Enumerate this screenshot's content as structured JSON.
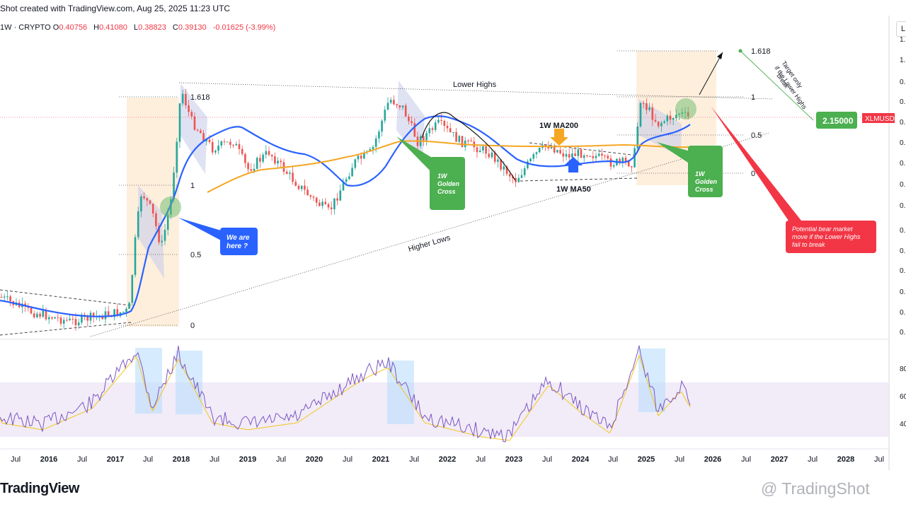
{
  "header": {
    "created_line": "Shot created with TradingView.com, Aug 25, 2025 11:23 UTC",
    "symbol_line": "1W · CRYPTO",
    "ohlc": {
      "O": "0.40756",
      "H": "0.41080",
      "L": "0.38823",
      "C": "0.39130",
      "change": "-0.01625 (-3.99%)"
    },
    "scale_button": "L"
  },
  "brand": "TradingView",
  "watermark": "@ TradingShot",
  "colors": {
    "ma200": "#f5a623",
    "ma50": "#2962ff",
    "candle_up": "#26a69a",
    "candle_down": "#ef5350",
    "rsi": "#7e57c2",
    "rsi_ma": "#f5c518",
    "green_box": "#4caf50",
    "blue_box": "#2962ff",
    "red_box": "#f23645"
  },
  "chart_data": {
    "type": "line",
    "title": "",
    "symbol_tag": "XLMUSD",
    "x_ticks": [
      "Jul",
      "2016",
      "Jul",
      "2017",
      "Jul",
      "2018",
      "Jul",
      "2019",
      "Jul",
      "2020",
      "Jul",
      "2021",
      "Jul",
      "2022",
      "Jul",
      "2023",
      "Jul",
      "2024",
      "Jul",
      "2025",
      "Jul",
      "2026",
      "Jul",
      "2027",
      "Jul",
      "2028",
      "Jul"
    ],
    "fib_levels": [
      {
        "label": "1.618",
        "group": "2017"
      },
      {
        "label": "1",
        "group": "2017"
      },
      {
        "label": "0.5",
        "group": "2017"
      },
      {
        "label": "0",
        "group": "2017"
      },
      {
        "label": "1.618",
        "group": "2025"
      },
      {
        "label": "1",
        "group": "2025"
      },
      {
        "label": "0.5",
        "group": "2025"
      },
      {
        "label": "0",
        "group": "2025"
      }
    ],
    "annotations": {
      "lower_highs": "Lower Highs",
      "higher_lows": "Higher Lows",
      "ma200_label": "1W MA200",
      "ma50_label": "1W MA50",
      "we_are_here": "We are here ?",
      "golden_cross_1": "1W Golden Cross",
      "golden_cross_2": "1W Golden Cross",
      "target": "2.15000",
      "target_note": "Target only if the Lower Highs break",
      "bear_note": "Potential bear market move if the Lower Highs fail to break"
    },
    "rsi_axis": [
      "80",
      "60",
      "40"
    ],
    "price_axis_partial": [
      "1.",
      "1.",
      "0.",
      "0.",
      "0.",
      "0.",
      "0.",
      "0.",
      "0.",
      "0.",
      "0.",
      "0.",
      "0.",
      "0.",
      "0."
    ]
  }
}
